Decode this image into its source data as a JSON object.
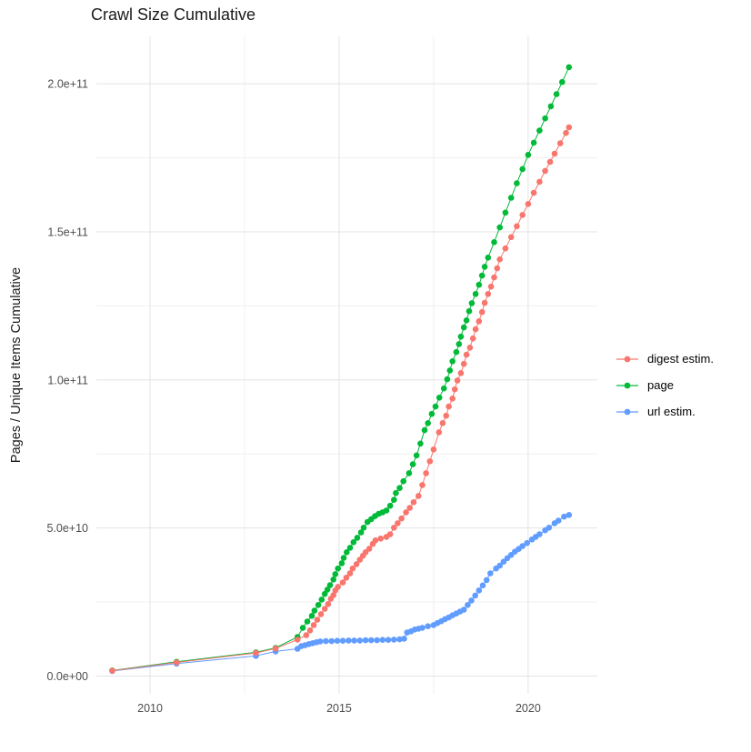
{
  "title": "Crawl Size Cumulative",
  "chart_data": {
    "type": "line",
    "subtype": "points-with-line",
    "title": "Crawl Size Cumulative",
    "xlabel": "",
    "ylabel": "Pages / Unique Items Cumulative",
    "grid": true,
    "legend_position": "right",
    "xlim": [
      2008.58,
      2021.83
    ],
    "ylim": [
      -6,
      216
    ],
    "values_unit": "items, in billions (1e9)",
    "x_ticks": [
      {
        "value": 2010,
        "label": "2010"
      },
      {
        "value": 2015,
        "label": "2015"
      },
      {
        "value": 2020,
        "label": "2020"
      }
    ],
    "x_minor_ticks": [
      2012.5,
      2017.5
    ],
    "y_ticks": [
      {
        "value": 0,
        "label": "0.0e+00"
      },
      {
        "value": 50,
        "label": "5.0e+10"
      },
      {
        "value": 100,
        "label": "1.0e+11"
      },
      {
        "value": 150,
        "label": "1.5e+11"
      },
      {
        "value": 200,
        "label": "2.0e+11"
      }
    ],
    "y_minor_ticks": [
      25,
      75,
      125,
      175
    ],
    "draw_order": [
      1,
      2,
      0
    ],
    "series": [
      {
        "name": "digest estim.",
        "color": "#F8766D",
        "points": [
          [
            2009.0,
            1.8
          ],
          [
            2010.7,
            4.6
          ],
          [
            2012.8,
            7.8
          ],
          [
            2013.32,
            9.3
          ],
          [
            2013.9,
            12.3
          ],
          [
            2014.13,
            13.8
          ],
          [
            2014.23,
            15.4
          ],
          [
            2014.33,
            17.2
          ],
          [
            2014.42,
            19.0
          ],
          [
            2014.52,
            20.9
          ],
          [
            2014.62,
            22.7
          ],
          [
            2014.71,
            24.3
          ],
          [
            2014.78,
            26.1
          ],
          [
            2014.85,
            27.3
          ],
          [
            2014.9,
            28.9
          ],
          [
            2014.97,
            30.1
          ],
          [
            2015.1,
            31.6
          ],
          [
            2015.19,
            33.2
          ],
          [
            2015.29,
            34.7
          ],
          [
            2015.36,
            36.3
          ],
          [
            2015.46,
            37.8
          ],
          [
            2015.55,
            39.3
          ],
          [
            2015.63,
            40.6
          ],
          [
            2015.7,
            41.8
          ],
          [
            2015.8,
            43.0
          ],
          [
            2015.89,
            44.6
          ],
          [
            2015.96,
            45.8
          ],
          [
            2016.1,
            46.4
          ],
          [
            2016.25,
            47.0
          ],
          [
            2016.35,
            47.9
          ],
          [
            2016.45,
            50.1
          ],
          [
            2016.55,
            51.6
          ],
          [
            2016.65,
            53.2
          ],
          [
            2016.77,
            55.3
          ],
          [
            2016.87,
            56.8
          ],
          [
            2016.97,
            58.7
          ],
          [
            2017.1,
            60.8
          ],
          [
            2017.2,
            64.5
          ],
          [
            2017.3,
            68.5
          ],
          [
            2017.4,
            72.5
          ],
          [
            2017.5,
            76.5
          ],
          [
            2017.64,
            82.3
          ],
          [
            2017.74,
            85.4
          ],
          [
            2017.83,
            87.9
          ],
          [
            2017.9,
            91.0
          ],
          [
            2018.0,
            93.7
          ],
          [
            2018.06,
            96.8
          ],
          [
            2018.13,
            99.8
          ],
          [
            2018.22,
            102.3
          ],
          [
            2018.3,
            105.4
          ],
          [
            2018.37,
            108.5
          ],
          [
            2018.46,
            110.9
          ],
          [
            2018.54,
            114.0
          ],
          [
            2018.61,
            117.1
          ],
          [
            2018.7,
            119.8
          ],
          [
            2018.78,
            122.9
          ],
          [
            2018.85,
            126.0
          ],
          [
            2018.94,
            129.0
          ],
          [
            2019.02,
            131.5
          ],
          [
            2019.1,
            134.6
          ],
          [
            2019.18,
            137.7
          ],
          [
            2019.25,
            140.7
          ],
          [
            2019.4,
            144.4
          ],
          [
            2019.55,
            148.2
          ],
          [
            2019.7,
            151.9
          ],
          [
            2019.85,
            155.7
          ],
          [
            2020.0,
            159.4
          ],
          [
            2020.15,
            163.2
          ],
          [
            2020.3,
            166.9
          ],
          [
            2020.45,
            170.6
          ],
          [
            2020.58,
            173.6
          ],
          [
            2020.7,
            176.4
          ],
          [
            2020.85,
            179.9
          ],
          [
            2021.0,
            183.4
          ],
          [
            2021.08,
            185.3
          ]
        ]
      },
      {
        "name": "page",
        "color": "#00BA38",
        "points": [
          [
            2009.0,
            1.9
          ],
          [
            2010.7,
            4.8
          ],
          [
            2012.8,
            8.0
          ],
          [
            2013.32,
            9.5
          ],
          [
            2013.9,
            13.2
          ],
          [
            2014.04,
            16.3
          ],
          [
            2014.16,
            18.4
          ],
          [
            2014.28,
            20.3
          ],
          [
            2014.35,
            22.1
          ],
          [
            2014.45,
            24.0
          ],
          [
            2014.54,
            25.8
          ],
          [
            2014.62,
            27.7
          ],
          [
            2014.69,
            29.2
          ],
          [
            2014.76,
            30.7
          ],
          [
            2014.85,
            32.6
          ],
          [
            2014.9,
            34.4
          ],
          [
            2014.97,
            36.3
          ],
          [
            2015.07,
            38.1
          ],
          [
            2015.12,
            39.9
          ],
          [
            2015.2,
            41.8
          ],
          [
            2015.29,
            43.3
          ],
          [
            2015.38,
            45.2
          ],
          [
            2015.48,
            46.7
          ],
          [
            2015.58,
            48.5
          ],
          [
            2015.65,
            50.1
          ],
          [
            2015.75,
            52.0
          ],
          [
            2015.85,
            53.0
          ],
          [
            2015.95,
            54.0
          ],
          [
            2016.05,
            54.8
          ],
          [
            2016.15,
            55.3
          ],
          [
            2016.25,
            55.9
          ],
          [
            2016.35,
            57.5
          ],
          [
            2016.45,
            59.5
          ],
          [
            2016.5,
            61.8
          ],
          [
            2016.6,
            63.5
          ],
          [
            2016.7,
            65.8
          ],
          [
            2016.85,
            68.5
          ],
          [
            2016.95,
            71.5
          ],
          [
            2017.05,
            74.5
          ],
          [
            2017.15,
            78.5
          ],
          [
            2017.26,
            83.0
          ],
          [
            2017.35,
            85.4
          ],
          [
            2017.45,
            88.5
          ],
          [
            2017.55,
            91.0
          ],
          [
            2017.65,
            94.0
          ],
          [
            2017.77,
            97.1
          ],
          [
            2017.86,
            100.2
          ],
          [
            2017.93,
            103.2
          ],
          [
            2018.0,
            106.3
          ],
          [
            2018.1,
            109.4
          ],
          [
            2018.17,
            112.1
          ],
          [
            2018.22,
            114.6
          ],
          [
            2018.3,
            117.7
          ],
          [
            2018.37,
            120.1
          ],
          [
            2018.44,
            123.2
          ],
          [
            2018.51,
            125.9
          ],
          [
            2018.61,
            129.0
          ],
          [
            2018.7,
            132.1
          ],
          [
            2018.78,
            135.2
          ],
          [
            2018.85,
            138.2
          ],
          [
            2018.94,
            141.3
          ],
          [
            2019.1,
            146.5
          ],
          [
            2019.25,
            151.5
          ],
          [
            2019.4,
            156.5
          ],
          [
            2019.55,
            161.5
          ],
          [
            2019.7,
            166.4
          ],
          [
            2019.85,
            171.2
          ],
          [
            2020.0,
            176.0
          ],
          [
            2020.15,
            180.1
          ],
          [
            2020.3,
            184.2
          ],
          [
            2020.45,
            188.3
          ],
          [
            2020.6,
            192.4
          ],
          [
            2020.75,
            196.5
          ],
          [
            2020.9,
            200.6
          ],
          [
            2021.08,
            205.6
          ]
        ]
      },
      {
        "name": "url estim.",
        "color": "#619CFF",
        "points": [
          [
            2009.0,
            1.7
          ],
          [
            2010.7,
            4.2
          ],
          [
            2012.8,
            6.8
          ],
          [
            2013.32,
            8.3
          ],
          [
            2013.9,
            9.2
          ],
          [
            2014.0,
            10.1
          ],
          [
            2014.1,
            10.4
          ],
          [
            2014.2,
            10.8
          ],
          [
            2014.3,
            11.1
          ],
          [
            2014.4,
            11.4
          ],
          [
            2014.5,
            11.7
          ],
          [
            2014.65,
            11.8
          ],
          [
            2014.8,
            11.8
          ],
          [
            2014.95,
            11.9
          ],
          [
            2015.1,
            11.9
          ],
          [
            2015.25,
            12.0
          ],
          [
            2015.4,
            12.0
          ],
          [
            2015.55,
            12.0
          ],
          [
            2015.7,
            12.1
          ],
          [
            2015.85,
            12.1
          ],
          [
            2016.0,
            12.1
          ],
          [
            2016.15,
            12.2
          ],
          [
            2016.3,
            12.2
          ],
          [
            2016.45,
            12.3
          ],
          [
            2016.6,
            12.4
          ],
          [
            2016.72,
            12.6
          ],
          [
            2016.8,
            14.7
          ],
          [
            2016.9,
            15.1
          ],
          [
            2017.0,
            15.7
          ],
          [
            2017.1,
            16.0
          ],
          [
            2017.2,
            16.3
          ],
          [
            2017.35,
            16.8
          ],
          [
            2017.5,
            17.2
          ],
          [
            2017.6,
            17.9
          ],
          [
            2017.7,
            18.5
          ],
          [
            2017.8,
            19.2
          ],
          [
            2017.9,
            19.8
          ],
          [
            2018.0,
            20.5
          ],
          [
            2018.1,
            21.1
          ],
          [
            2018.2,
            21.8
          ],
          [
            2018.3,
            22.4
          ],
          [
            2018.4,
            24.0
          ],
          [
            2018.5,
            25.5
          ],
          [
            2018.6,
            27.2
          ],
          [
            2018.7,
            28.9
          ],
          [
            2018.8,
            30.6
          ],
          [
            2018.9,
            32.4
          ],
          [
            2019.0,
            34.7
          ],
          [
            2019.15,
            36.3
          ],
          [
            2019.25,
            37.3
          ],
          [
            2019.35,
            38.6
          ],
          [
            2019.45,
            39.8
          ],
          [
            2019.55,
            40.9
          ],
          [
            2019.65,
            42.0
          ],
          [
            2019.75,
            42.9
          ],
          [
            2019.85,
            43.9
          ],
          [
            2019.97,
            44.9
          ],
          [
            2020.1,
            46.1
          ],
          [
            2020.2,
            47.0
          ],
          [
            2020.3,
            47.9
          ],
          [
            2020.45,
            49.2
          ],
          [
            2020.55,
            50.1
          ],
          [
            2020.7,
            51.6
          ],
          [
            2020.8,
            52.5
          ],
          [
            2020.95,
            53.8
          ],
          [
            2021.08,
            54.4
          ]
        ]
      }
    ]
  },
  "colors": {
    "background": "#ffffff",
    "grid_major": "#e3e3e3",
    "grid_minor": "#f0f0f0",
    "tick_label": "#4d4d4d",
    "title_text": "#1a1a1a",
    "axis_title_text": "#1a1a1a",
    "legend_text": "#000000"
  }
}
